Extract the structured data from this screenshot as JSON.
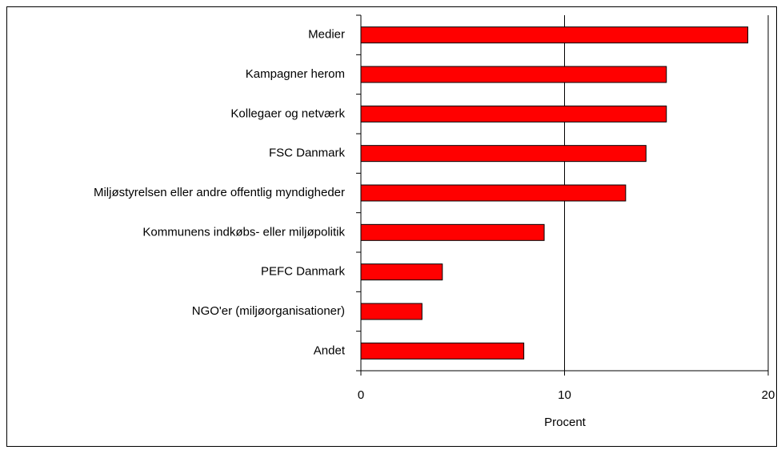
{
  "chart_data": {
    "type": "bar",
    "orientation": "horizontal",
    "categories": [
      "Medier",
      "Kampagner herom",
      "Kollegaer og netværk",
      "FSC Danmark",
      "Miljøstyrelsen eller andre offentlig myndigheder",
      "Kommunens indkøbs- eller miljøpolitik",
      "PEFC Danmark",
      "NGO'er (miljøorganisationer)",
      "Andet"
    ],
    "values": [
      19,
      15,
      15,
      14,
      13,
      9,
      4,
      3,
      8
    ],
    "color": "#ff0000",
    "x_label": "Procent",
    "xlim": [
      0,
      20
    ],
    "xticks": [
      0,
      10,
      20
    ],
    "grid": true
  }
}
